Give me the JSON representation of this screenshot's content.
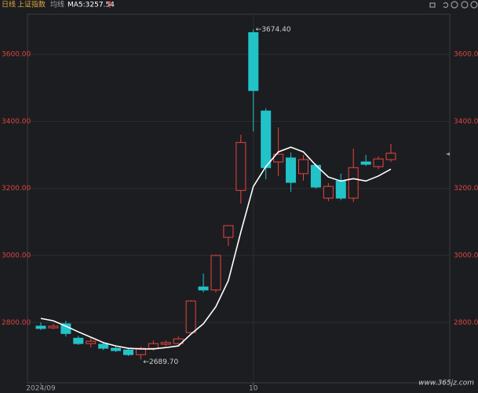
{
  "header": {
    "period": "日线",
    "index_name": "上证指数",
    "ma_menu": "均线",
    "ma_label": "MA5:3257.54"
  },
  "chart_data": {
    "type": "candlestick",
    "categories": [
      "2024/09",
      null,
      null,
      null,
      null,
      null,
      null,
      null,
      null,
      null,
      null,
      null,
      null,
      null,
      null,
      null,
      null,
      "10",
      null,
      null,
      null,
      null,
      null,
      null,
      null,
      null,
      null,
      null,
      null
    ],
    "open": [
      2789,
      2784,
      2796,
      2753,
      2737,
      2735,
      2723,
      2718,
      2704,
      2723,
      2735,
      2737,
      2770,
      2906,
      2897,
      3054,
      3194,
      3665,
      3431,
      3279,
      3291,
      3244,
      3269,
      3171,
      3222,
      3171,
      3279,
      3265,
      3286
    ],
    "high": [
      2800,
      2796,
      2805,
      2760,
      2753,
      2740,
      2730,
      2723,
      2728,
      2746,
      2746,
      2758,
      2866,
      2946,
      3002,
      3089,
      3360,
      3674.4,
      3439,
      3382,
      3307,
      3300,
      3274,
      3216,
      3244,
      3319,
      3300,
      3295,
      3333
    ],
    "low": [
      2777,
      2780,
      2758,
      2733,
      2726,
      2718,
      2712,
      2700,
      2689.7,
      2716,
      2730,
      2733,
      2765,
      2890,
      2890,
      3028,
      3155,
      3370,
      3227,
      3237,
      3190,
      3223,
      3199,
      3162,
      3165,
      3160,
      3267,
      3257,
      3279
    ],
    "close": [
      2782,
      2789,
      2767,
      2737,
      2744,
      2723,
      2716,
      2704,
      2723,
      2737,
      2740,
      2751,
      2864,
      2897,
      3000,
      3089,
      3337,
      3492,
      3262,
      3302,
      3218,
      3286,
      3204,
      3206,
      3171,
      3262,
      3272,
      3288,
      3305
    ],
    "up_color": "#e8453f",
    "down_color": "#22c3c8",
    "ma": {
      "color": "#ffffff",
      "values": [
        2812,
        2805,
        2789,
        2772,
        2756,
        2740,
        2730,
        2723,
        2721,
        2721,
        2725,
        2730,
        2765,
        2796,
        2847,
        2925,
        3070,
        3206,
        3265,
        3309,
        3323,
        3309,
        3269,
        3234,
        3222,
        3229,
        3222,
        3237,
        3257.54
      ]
    },
    "high_label": "←3674.40",
    "low_label": "←2689.70",
    "ylim": [
      2620,
      3720
    ],
    "yticks": [
      {
        "value": 2800,
        "label": "2800.00"
      },
      {
        "value": 3000,
        "label": "3000.00"
      },
      {
        "value": 3200,
        "label": "3200.00"
      },
      {
        "value": 3400,
        "label": "3400.00"
      },
      {
        "value": 3600,
        "label": "3600.00"
      }
    ],
    "grid": true
  },
  "watermark": "www.365jz.com"
}
